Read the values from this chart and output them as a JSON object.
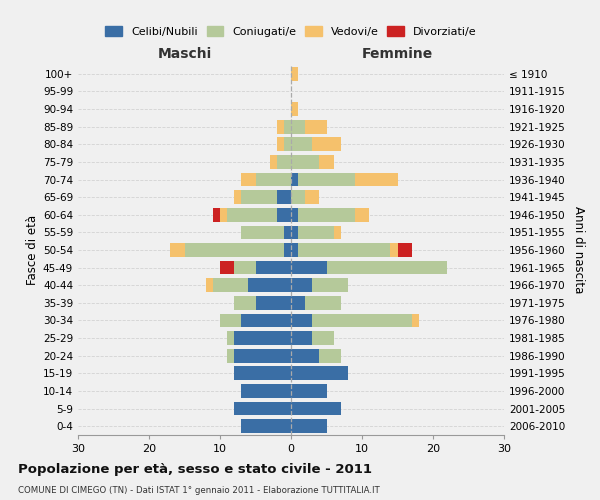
{
  "age_groups": [
    "0-4",
    "5-9",
    "10-14",
    "15-19",
    "20-24",
    "25-29",
    "30-34",
    "35-39",
    "40-44",
    "45-49",
    "50-54",
    "55-59",
    "60-64",
    "65-69",
    "70-74",
    "75-79",
    "80-84",
    "85-89",
    "90-94",
    "95-99",
    "100+"
  ],
  "birth_years": [
    "2006-2010",
    "2001-2005",
    "1996-2000",
    "1991-1995",
    "1986-1990",
    "1981-1985",
    "1976-1980",
    "1971-1975",
    "1966-1970",
    "1961-1965",
    "1956-1960",
    "1951-1955",
    "1946-1950",
    "1941-1945",
    "1936-1940",
    "1931-1935",
    "1926-1930",
    "1921-1925",
    "1916-1920",
    "1911-1915",
    "≤ 1910"
  ],
  "colors": {
    "celibi": "#3a6ea5",
    "coniugati": "#b5c99a",
    "vedovi": "#f5c16c",
    "divorziati": "#cc2222"
  },
  "legend_labels": [
    "Celibi/Nubili",
    "Coniugati/e",
    "Vedovi/e",
    "Divorziati/e"
  ],
  "maschi": {
    "celibi": [
      7,
      8,
      7,
      8,
      8,
      8,
      7,
      5,
      6,
      5,
      1,
      1,
      2,
      2,
      0,
      0,
      0,
      0,
      0,
      0,
      0
    ],
    "coniugati": [
      0,
      0,
      0,
      0,
      1,
      1,
      3,
      3,
      5,
      3,
      14,
      6,
      7,
      5,
      5,
      2,
      1,
      1,
      0,
      0,
      0
    ],
    "vedovi": [
      0,
      0,
      0,
      0,
      0,
      0,
      0,
      0,
      1,
      0,
      2,
      0,
      1,
      1,
      2,
      1,
      1,
      1,
      0,
      0,
      0
    ],
    "divorziati": [
      0,
      0,
      0,
      0,
      0,
      0,
      0,
      0,
      0,
      2,
      0,
      0,
      1,
      0,
      0,
      0,
      0,
      0,
      0,
      0,
      0
    ]
  },
  "femmine": {
    "nubili": [
      5,
      7,
      5,
      8,
      4,
      3,
      3,
      2,
      3,
      5,
      1,
      1,
      1,
      0,
      1,
      0,
      0,
      0,
      0,
      0,
      0
    ],
    "coniugate": [
      0,
      0,
      0,
      0,
      3,
      3,
      14,
      5,
      5,
      17,
      13,
      5,
      8,
      2,
      8,
      4,
      3,
      2,
      0,
      0,
      0
    ],
    "vedove": [
      0,
      0,
      0,
      0,
      0,
      0,
      1,
      0,
      0,
      0,
      1,
      1,
      2,
      2,
      6,
      2,
      4,
      3,
      1,
      0,
      1
    ],
    "divorziate": [
      0,
      0,
      0,
      0,
      0,
      0,
      0,
      0,
      0,
      0,
      2,
      0,
      0,
      0,
      0,
      0,
      0,
      0,
      0,
      0,
      0
    ]
  },
  "title": "Popolazione per età, sesso e stato civile - 2011",
  "subtitle": "COMUNE DI CIMEGO (TN) - Dati ISTAT 1° gennaio 2011 - Elaborazione TUTTITALIA.IT",
  "xlabel_left": "Maschi",
  "xlabel_right": "Femmine",
  "ylabel_left": "Fasce di età",
  "ylabel_right": "Anni di nascita",
  "xlim": 30,
  "background_color": "#f0f0f0"
}
